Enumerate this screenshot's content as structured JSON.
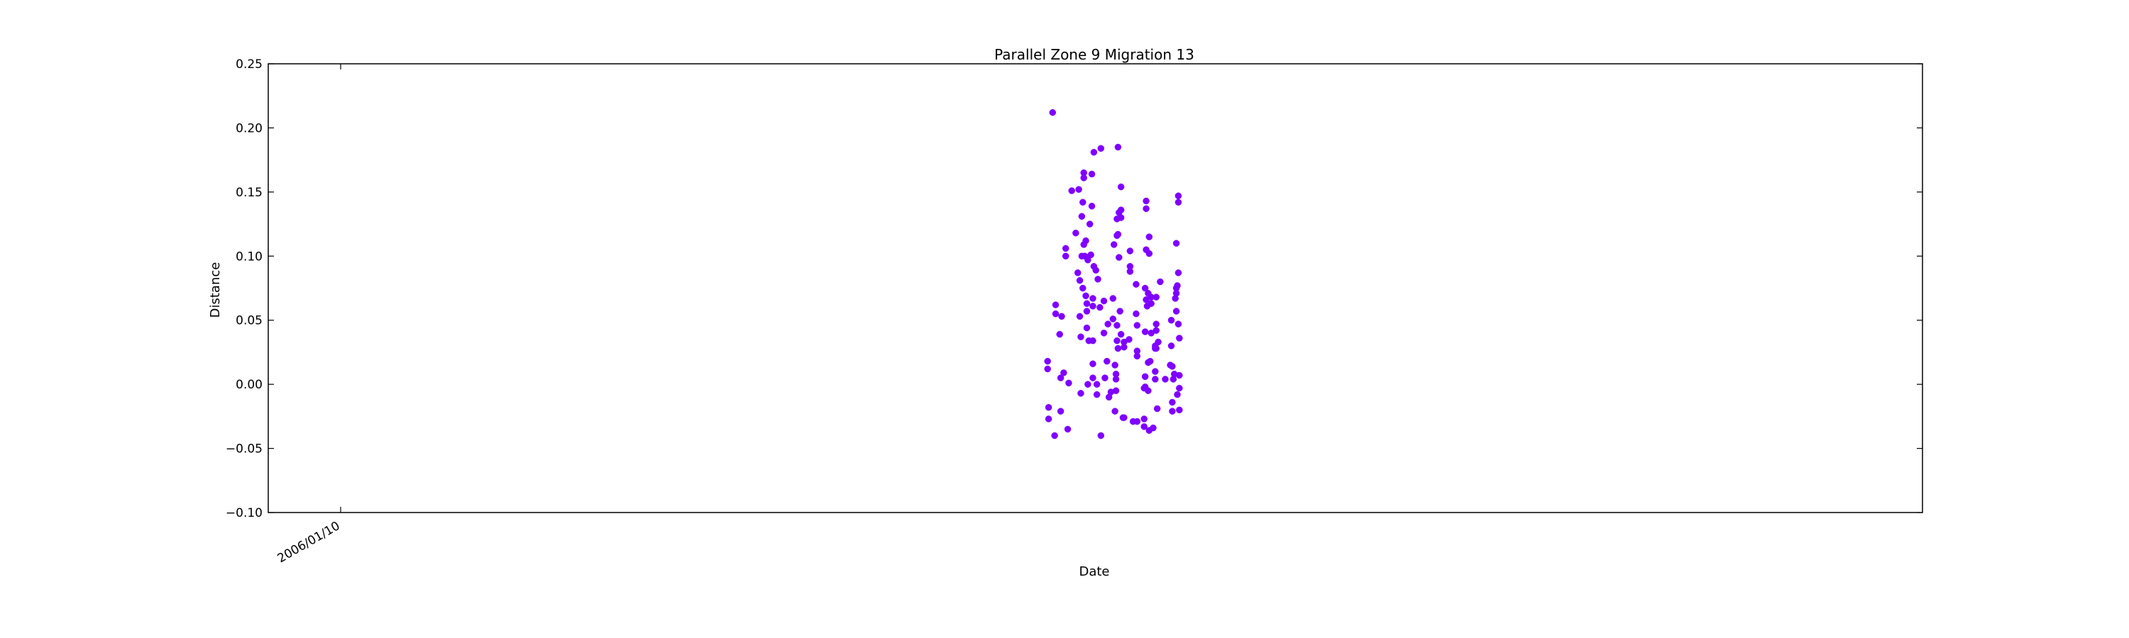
{
  "chart_data": {
    "type": "scatter",
    "title": "Parallel Zone 9 Migration 13",
    "xlabel": "Date",
    "ylabel": "Distance",
    "ylim": [
      -0.1,
      0.25
    ],
    "yticks": [
      "−0.10",
      "−0.05",
      "0.00",
      "0.05",
      "0.10",
      "0.15",
      "0.20",
      "0.25"
    ],
    "ytick_values": [
      -0.1,
      -0.05,
      0.0,
      0.05,
      0.1,
      0.15,
      0.2,
      0.25
    ],
    "xlim": [
      "2005/10/30",
      "2010/05/02"
    ],
    "xticks": [
      {
        "value": "2006/01/10",
        "label": "2006/01/10"
      }
    ],
    "grid": false,
    "legend": "none",
    "marker_color": "#7f00ff",
    "series": [
      {
        "points": [
          {
            "x": "2007/12/14",
            "y": 0.018
          },
          {
            "x": "2007/12/14",
            "y": 0.012
          },
          {
            "x": "2007/12/15",
            "y": -0.018
          },
          {
            "x": "2007/12/15",
            "y": -0.027
          },
          {
            "x": "2007/12/19",
            "y": 0.212
          },
          {
            "x": "2007/12/21",
            "y": -0.04
          },
          {
            "x": "2007/12/22",
            "y": 0.062
          },
          {
            "x": "2007/12/22",
            "y": 0.055
          },
          {
            "x": "2007/12/26",
            "y": 0.039
          },
          {
            "x": "2007/12/27",
            "y": 0.005
          },
          {
            "x": "2007/12/27",
            "y": -0.021
          },
          {
            "x": "2007/12/28",
            "y": 0.053
          },
          {
            "x": "2007/12/30",
            "y": 0.009
          },
          {
            "x": "2008/01/01",
            "y": 0.106
          },
          {
            "x": "2008/01/01",
            "y": 0.1
          },
          {
            "x": "2008/01/03",
            "y": -0.035
          },
          {
            "x": "2008/01/04",
            "y": 0.001
          },
          {
            "x": "2008/01/07",
            "y": 0.151
          },
          {
            "x": "2008/01/11",
            "y": 0.118
          },
          {
            "x": "2008/01/13",
            "y": 0.087
          },
          {
            "x": "2008/01/14",
            "y": 0.152
          },
          {
            "x": "2008/01/15",
            "y": 0.081
          },
          {
            "x": "2008/01/15",
            "y": 0.053
          },
          {
            "x": "2008/01/16",
            "y": 0.037
          },
          {
            "x": "2008/01/16",
            "y": -0.007
          },
          {
            "x": "2008/01/17",
            "y": 0.131
          },
          {
            "x": "2008/01/17",
            "y": 0.1
          },
          {
            "x": "2008/01/18",
            "y": 0.142
          },
          {
            "x": "2008/01/18",
            "y": 0.075
          },
          {
            "x": "2008/01/19",
            "y": 0.161
          },
          {
            "x": "2008/01/19",
            "y": 0.165
          },
          {
            "x": "2008/01/19",
            "y": 0.109
          },
          {
            "x": "2008/01/20",
            "y": 0.1
          },
          {
            "x": "2008/01/21",
            "y": 0.069
          },
          {
            "x": "2008/01/21",
            "y": 0.112
          },
          {
            "x": "2008/01/22",
            "y": 0.063
          },
          {
            "x": "2008/01/22",
            "y": 0.057
          },
          {
            "x": "2008/01/22",
            "y": 0.044
          },
          {
            "x": "2008/01/23",
            "y": 0.097
          },
          {
            "x": "2008/01/23",
            "y": 0.0
          },
          {
            "x": "2008/01/24",
            "y": 0.034
          },
          {
            "x": "2008/01/25",
            "y": 0.125
          },
          {
            "x": "2008/01/26",
            "y": 0.101
          },
          {
            "x": "2008/01/27",
            "y": 0.139
          },
          {
            "x": "2008/01/27",
            "y": 0.164
          },
          {
            "x": "2008/01/28",
            "y": 0.067
          },
          {
            "x": "2008/01/28",
            "y": 0.061
          },
          {
            "x": "2008/01/28",
            "y": 0.034
          },
          {
            "x": "2008/01/28",
            "y": 0.016
          },
          {
            "x": "2008/01/28",
            "y": 0.005
          },
          {
            "x": "2008/01/29",
            "y": 0.092
          },
          {
            "x": "2008/01/29",
            "y": 0.181
          },
          {
            "x": "2008/01/31",
            "y": 0.089
          },
          {
            "x": "2008/02/01",
            "y": 0.0
          },
          {
            "x": "2008/02/01",
            "y": -0.008
          },
          {
            "x": "2008/02/02",
            "y": 0.082
          },
          {
            "x": "2008/02/04",
            "y": 0.06
          },
          {
            "x": "2008/02/05",
            "y": 0.184
          },
          {
            "x": "2008/02/05",
            "y": -0.04
          },
          {
            "x": "2008/02/08",
            "y": 0.065
          },
          {
            "x": "2008/02/08",
            "y": 0.04
          },
          {
            "x": "2008/02/09",
            "y": 0.005
          },
          {
            "x": "2008/02/11",
            "y": 0.018
          },
          {
            "x": "2008/02/12",
            "y": 0.047
          },
          {
            "x": "2008/02/13",
            "y": -0.01
          },
          {
            "x": "2008/02/15",
            "y": -0.006
          },
          {
            "x": "2008/02/17",
            "y": 0.067
          },
          {
            "x": "2008/02/17",
            "y": 0.051
          },
          {
            "x": "2008/02/18",
            "y": 0.109
          },
          {
            "x": "2008/02/19",
            "y": 0.015
          },
          {
            "x": "2008/02/19",
            "y": -0.021
          },
          {
            "x": "2008/02/20",
            "y": 0.008
          },
          {
            "x": "2008/02/20",
            "y": 0.004
          },
          {
            "x": "2008/02/20",
            "y": -0.005
          },
          {
            "x": "2008/02/21",
            "y": 0.116
          },
          {
            "x": "2008/02/21",
            "y": 0.129
          },
          {
            "x": "2008/02/21",
            "y": 0.046
          },
          {
            "x": "2008/02/21",
            "y": 0.034
          },
          {
            "x": "2008/02/22",
            "y": 0.185
          },
          {
            "x": "2008/02/22",
            "y": 0.117
          },
          {
            "x": "2008/02/22",
            "y": 0.028
          },
          {
            "x": "2008/02/23",
            "y": 0.134
          },
          {
            "x": "2008/02/23",
            "y": 0.099
          },
          {
            "x": "2008/02/24",
            "y": 0.057
          },
          {
            "x": "2008/02/25",
            "y": 0.154
          },
          {
            "x": "2008/02/25",
            "y": 0.136
          },
          {
            "x": "2008/02/25",
            "y": 0.13
          },
          {
            "x": "2008/02/25",
            "y": 0.039
          },
          {
            "x": "2008/02/27",
            "y": -0.026
          },
          {
            "x": "2008/02/28",
            "y": -0.026
          },
          {
            "x": "2008/02/28",
            "y": 0.033
          },
          {
            "x": "2008/02/28",
            "y": 0.029
          },
          {
            "x": "2008/03/04",
            "y": 0.035
          },
          {
            "x": "2008/03/05",
            "y": 0.104
          },
          {
            "x": "2008/03/05",
            "y": 0.092
          },
          {
            "x": "2008/03/05",
            "y": 0.088
          },
          {
            "x": "2008/03/08",
            "y": -0.029
          },
          {
            "x": "2008/03/11",
            "y": 0.078
          },
          {
            "x": "2008/03/11",
            "y": 0.055
          },
          {
            "x": "2008/03/12",
            "y": 0.046
          },
          {
            "x": "2008/03/12",
            "y": 0.026
          },
          {
            "x": "2008/03/12",
            "y": 0.022
          },
          {
            "x": "2008/03/12",
            "y": -0.029
          },
          {
            "x": "2008/03/19",
            "y": -0.003
          },
          {
            "x": "2008/03/19",
            "y": -0.027
          },
          {
            "x": "2008/03/19",
            "y": -0.033
          },
          {
            "x": "2008/03/20",
            "y": 0.075
          },
          {
            "x": "2008/03/20",
            "y": 0.041
          },
          {
            "x": "2008/03/20",
            "y": 0.006
          },
          {
            "x": "2008/03/20",
            "y": -0.002
          },
          {
            "x": "2008/03/21",
            "y": 0.143
          },
          {
            "x": "2008/03/21",
            "y": 0.137
          },
          {
            "x": "2008/03/21",
            "y": 0.105
          },
          {
            "x": "2008/03/21",
            "y": 0.066
          },
          {
            "x": "2008/03/22",
            "y": 0.061
          },
          {
            "x": "2008/03/23",
            "y": 0.071
          },
          {
            "x": "2008/03/23",
            "y": 0.017
          },
          {
            "x": "2008/03/23",
            "y": -0.005
          },
          {
            "x": "2008/03/24",
            "y": 0.115
          },
          {
            "x": "2008/03/24",
            "y": 0.102
          },
          {
            "x": "2008/03/24",
            "y": -0.036
          },
          {
            "x": "2008/03/25",
            "y": 0.018
          },
          {
            "x": "2008/03/26",
            "y": 0.068
          },
          {
            "x": "2008/03/26",
            "y": 0.063
          },
          {
            "x": "2008/03/26",
            "y": 0.04
          },
          {
            "x": "2008/03/28",
            "y": -0.034
          },
          {
            "x": "2008/03/30",
            "y": 0.03
          },
          {
            "x": "2008/03/30",
            "y": 0.028
          },
          {
            "x": "2008/03/30",
            "y": 0.01
          },
          {
            "x": "2008/03/30",
            "y": 0.004
          },
          {
            "x": "2008/03/31",
            "y": 0.068
          },
          {
            "x": "2008/03/31",
            "y": 0.047
          },
          {
            "x": "2008/03/31",
            "y": 0.042
          },
          {
            "x": "2008/03/31",
            "y": 0.028
          },
          {
            "x": "2008/04/01",
            "y": -0.019
          },
          {
            "x": "2008/04/02",
            "y": 0.033
          },
          {
            "x": "2008/04/04",
            "y": 0.08
          },
          {
            "x": "2008/04/09",
            "y": 0.004
          },
          {
            "x": "2008/04/14",
            "y": 0.015
          },
          {
            "x": "2008/04/15",
            "y": 0.05
          },
          {
            "x": "2008/04/15",
            "y": 0.03
          },
          {
            "x": "2008/04/16",
            "y": 0.014
          },
          {
            "x": "2008/04/16",
            "y": -0.014
          },
          {
            "x": "2008/04/16",
            "y": -0.021
          },
          {
            "x": "2008/04/17",
            "y": 0.004
          },
          {
            "x": "2008/04/18",
            "y": 0.008
          },
          {
            "x": "2008/04/19",
            "y": 0.067
          },
          {
            "x": "2008/04/20",
            "y": 0.057
          },
          {
            "x": "2008/04/20",
            "y": 0.071
          },
          {
            "x": "2008/04/20",
            "y": 0.075
          },
          {
            "x": "2008/04/20",
            "y": 0.11
          },
          {
            "x": "2008/04/21",
            "y": 0.077
          },
          {
            "x": "2008/04/21",
            "y": -0.008
          },
          {
            "x": "2008/04/22",
            "y": 0.147
          },
          {
            "x": "2008/04/22",
            "y": 0.142
          },
          {
            "x": "2008/04/22",
            "y": 0.087
          },
          {
            "x": "2008/04/22",
            "y": 0.047
          },
          {
            "x": "2008/04/23",
            "y": 0.036
          },
          {
            "x": "2008/04/23",
            "y": 0.007
          },
          {
            "x": "2008/04/23",
            "y": -0.003
          },
          {
            "x": "2008/04/23",
            "y": -0.02
          }
        ]
      }
    ]
  }
}
